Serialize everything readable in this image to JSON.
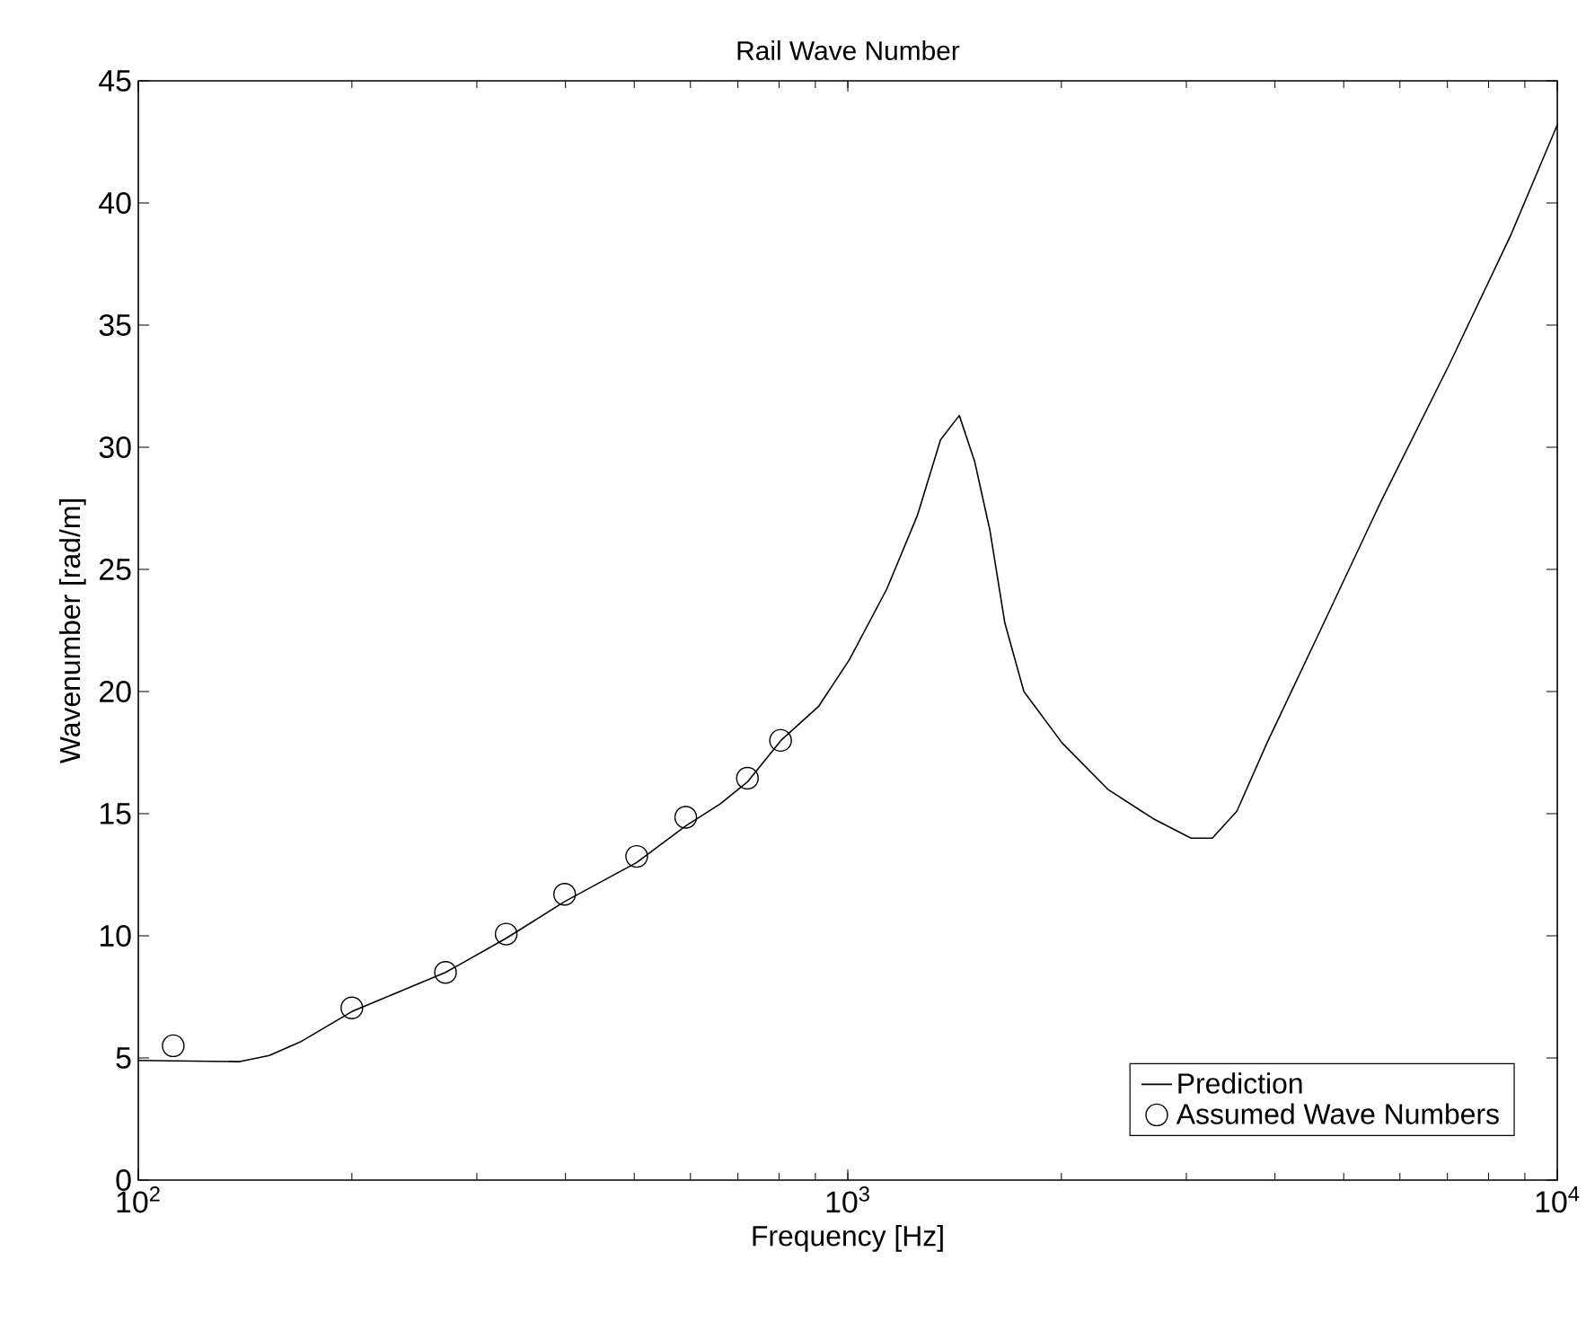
{
  "chart_data": {
    "type": "line",
    "title": "Rail Wave Number",
    "xlabel": "Frequency [Hz]",
    "ylabel": "Wavenumber [rad/m]",
    "log": "x",
    "xlim": [
      100,
      10000
    ],
    "ylim": [
      0,
      45
    ],
    "xticks": [
      {
        "value": 100,
        "label": "10$^{2}$"
      },
      {
        "value": 1000,
        "label": "10$^{3}$"
      },
      {
        "value": 10000,
        "label": "10$^{4}$"
      }
    ],
    "yticks": [
      0,
      5,
      10,
      15,
      20,
      25,
      30,
      35,
      40,
      45
    ],
    "legend": "bottom right",
    "series": [
      {
        "name": "Prediction",
        "color": "#000000",
        "marker": "none",
        "line_style": "solid",
        "x": [
          100,
          139,
          153,
          169,
          200,
          271,
          330,
          399,
          504,
          591,
          661,
          722,
          805,
          910,
          1005,
          1135,
          1253,
          1351,
          1436,
          1510,
          1586,
          1665,
          1771,
          2004,
          2325,
          2693,
          3046,
          3264,
          3535,
          3899,
          4634,
          5647,
          7047,
          8590,
          10000
        ],
        "values": [
          4.9,
          4.85,
          5.1,
          5.65,
          6.9,
          8.5,
          9.9,
          11.4,
          13.0,
          14.5,
          15.4,
          16.3,
          18.0,
          19.4,
          21.3,
          24.2,
          27.2,
          30.3,
          31.3,
          29.4,
          26.6,
          22.8,
          20.0,
          17.9,
          16.0,
          14.8,
          14.0,
          14.0,
          15.1,
          17.9,
          22.5,
          27.8,
          33.4,
          38.65,
          43.2
        ]
      },
      {
        "name": "Assumed Wave Numbers",
        "type": "scatter",
        "color": "#000000",
        "marker": "circle",
        "x": [
          112,
          200,
          271,
          330,
          399,
          504,
          591,
          722,
          804
        ],
        "values": [
          5.5,
          7.05,
          8.5,
          10.07,
          11.7,
          13.25,
          14.85,
          16.45,
          18.0
        ]
      }
    ]
  }
}
